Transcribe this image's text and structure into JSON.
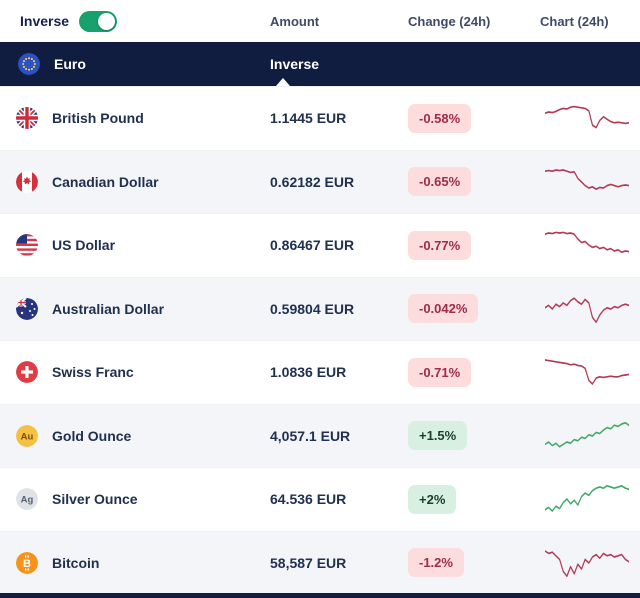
{
  "header": {
    "inverse_label": "Inverse",
    "toggle_state": "on",
    "columns": {
      "amount": "Amount",
      "change": "Change (24h)",
      "chart": "Chart (24h)"
    }
  },
  "base_currency": {
    "name": "Euro",
    "column_label": "Inverse",
    "flag": "eu-flag-icon"
  },
  "colors": {
    "navy": "#101d40",
    "toggle_green": "#18a06d",
    "badge_down_bg": "#fcdcdc",
    "badge_down_text": "#a02c46",
    "badge_up_bg": "#d7f0e2",
    "badge_up_text": "#1d3c30",
    "spark_down": "#b23a52",
    "spark_up": "#41a968",
    "row_alt_bg": "#f4f5f8"
  },
  "rows": [
    {
      "name": "British Pound",
      "icon": "uk-flag-icon",
      "amount": "1.1445 EUR",
      "change": "-0.58%",
      "direction": "down",
      "chart": {
        "color": "#b23a52",
        "points": [
          11,
          10,
          10.5,
          9.5,
          8,
          7,
          7.5,
          6,
          5.5,
          6,
          6.5,
          7,
          9,
          21,
          23,
          17,
          14,
          16,
          18,
          19,
          18.5,
          19,
          19.5,
          19
        ]
      }
    },
    {
      "name": "Canadian Dollar",
      "icon": "canada-flag-icon",
      "amount": "0.62182 EUR",
      "change": "-0.65%",
      "direction": "down",
      "chart": {
        "color": "#b23a52",
        "points": [
          6,
          5.5,
          6,
          5,
          5.5,
          5,
          6,
          7,
          6.5,
          12,
          15,
          18,
          20,
          19,
          21,
          19.5,
          20,
          18,
          17,
          18,
          19,
          18,
          17.5,
          18
        ]
      }
    },
    {
      "name": "US Dollar",
      "icon": "us-flag-icon",
      "amount": "0.86467 EUR",
      "change": "-0.77%",
      "direction": "down",
      "chart": {
        "color": "#b23a52",
        "points": [
          6,
          5,
          5.5,
          4.5,
          5,
          4.5,
          5.5,
          5,
          6,
          10,
          13,
          12,
          15,
          17,
          16,
          18,
          17,
          19,
          18,
          20,
          19,
          21,
          20,
          20.5
        ]
      }
    },
    {
      "name": "Australian Dollar",
      "icon": "australia-flag-icon",
      "amount": "0.59804 EUR",
      "change": "-0.042%",
      "direction": "down",
      "chart": {
        "color": "#b23a52",
        "points": [
          14,
          12,
          15,
          11,
          13,
          10,
          12,
          8,
          6,
          9,
          11,
          7,
          10,
          22,
          26,
          20,
          16,
          14,
          15,
          13,
          14,
          12,
          11,
          12
        ]
      }
    },
    {
      "name": "Swiss Franc",
      "icon": "switzerland-flag-icon",
      "amount": "1.0836 EUR",
      "change": "-0.71%",
      "direction": "down",
      "chart": {
        "color": "#b23a52",
        "points": [
          5,
          5.5,
          6,
          6.5,
          7,
          7.5,
          8,
          9,
          8.5,
          9.5,
          10,
          12,
          22,
          25,
          20,
          19,
          19.5,
          19,
          18.5,
          19,
          19,
          18,
          17.5,
          17
        ]
      }
    },
    {
      "name": "Gold Ounce",
      "icon": "gold-icon",
      "amount": "4,057.1 EUR",
      "change": "+1.5%",
      "direction": "up",
      "chart": {
        "color": "#41a968",
        "points": [
          22,
          20,
          23,
          21,
          24,
          22,
          20,
          21,
          18,
          19,
          16,
          17,
          14,
          15,
          12,
          13,
          10,
          8,
          9,
          6,
          7,
          5,
          4,
          6
        ]
      }
    },
    {
      "name": "Silver Ounce",
      "icon": "silver-icon",
      "amount": "64.536 EUR",
      "change": "+2%",
      "direction": "up",
      "chart": {
        "color": "#41a968",
        "points": [
          24,
          22,
          25,
          21,
          23,
          18,
          15,
          19,
          16,
          20,
          13,
          10,
          12,
          8,
          6,
          5,
          6,
          4,
          5,
          6,
          5,
          4,
          6,
          7
        ]
      }
    },
    {
      "name": "Bitcoin",
      "icon": "bitcoin-icon",
      "amount": "58,587 EUR",
      "change": "-1.2%",
      "direction": "down",
      "chart": {
        "color": "#b23a52",
        "points": [
          5,
          7,
          6,
          9,
          12,
          22,
          26,
          18,
          24,
          16,
          20,
          12,
          15,
          10,
          8,
          11,
          7,
          9,
          8,
          10,
          9,
          8,
          12,
          14
        ]
      }
    }
  ]
}
